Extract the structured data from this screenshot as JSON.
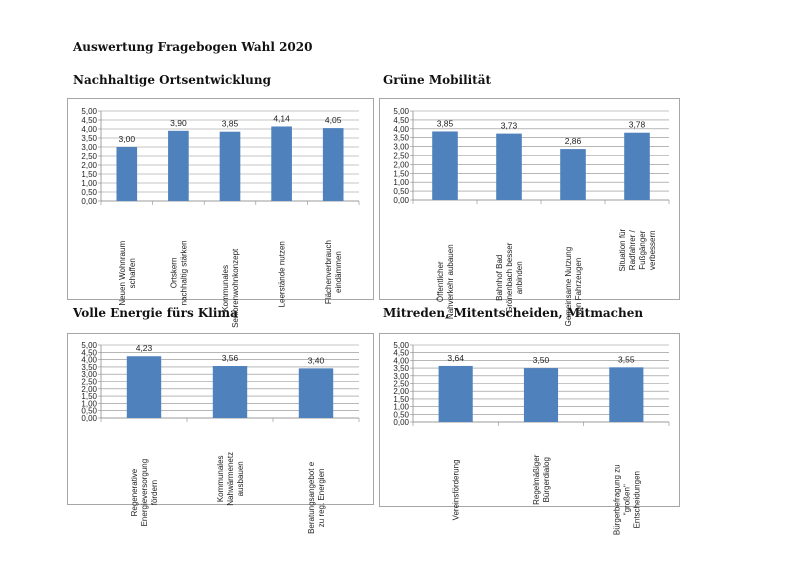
{
  "page_title": "Auswertung Fragebogen Wahl 2020",
  "chart_data": [
    {
      "type": "bar",
      "title": "Nachhaltige Ortsentwicklung",
      "categories": [
        "Neuen Wohnraum schaffen",
        "Ortskern nachhaltig stärken",
        "Kommunales Seniorenwohnkonzept",
        "Leerstände nutzen",
        "Flächenverbrauch eindämmen"
      ],
      "values": [
        3.0,
        3.9,
        3.85,
        4.14,
        4.05
      ],
      "data_labels": [
        "3,00",
        "3,90",
        "3,85",
        "4,14",
        "4,05"
      ],
      "ylim": [
        0,
        5
      ],
      "yticks": [
        "0,00",
        "0,50",
        "1,00",
        "1,50",
        "2,00",
        "2,50",
        "3,00",
        "3,50",
        "4,00",
        "4,50",
        "5,00"
      ],
      "grid": true,
      "color": "#4f81bd"
    },
    {
      "type": "bar",
      "title": "Grüne Mobilität",
      "categories": [
        "Öffentlicher Nahverkehr aubauen",
        "Bahnhof Bad Grönenbach besser anbinden",
        "Gemeinsame Nutzung von Fahrzeugen",
        "Situation für Radfahrer / Fußgänger verbessern"
      ],
      "values": [
        3.85,
        3.73,
        2.86,
        3.78
      ],
      "data_labels": [
        "3,85",
        "3,73",
        "2,86",
        "3,78"
      ],
      "ylim": [
        0,
        5
      ],
      "yticks": [
        "0,00",
        "0,50",
        "1,00",
        "1,50",
        "2,00",
        "2,50",
        "3,00",
        "3,50",
        "4,00",
        "4,50",
        "5,00"
      ],
      "grid": true,
      "color": "#4f81bd"
    },
    {
      "type": "bar",
      "title": "Volle Energie fürs Klima",
      "categories": [
        "Regenerative Energieversorgung fördern",
        "Kommunales Nahwärmenetz ausbauen",
        "Beratungsangebot e zu reg. Energien"
      ],
      "values": [
        4.23,
        3.56,
        3.4
      ],
      "data_labels": [
        "4,23",
        "3,56",
        "3,40"
      ],
      "ylim": [
        0,
        5
      ],
      "yticks": [
        "0,00",
        "0,50",
        "1,00",
        "1,50",
        "2,00",
        "2,50",
        "3,00",
        "3,50",
        "4,00",
        "4,50",
        "5,00"
      ],
      "grid": true,
      "color": "#4f81bd"
    },
    {
      "type": "bar",
      "title": "Mitreden, Mitentscheiden, Mitmachen",
      "categories": [
        "Vereinsförderung",
        "Regelmäßiger Bürgerdialog",
        "Bürgerbefragung zu \"großen\" Entscheidungen"
      ],
      "values": [
        3.64,
        3.5,
        3.55
      ],
      "data_labels": [
        "3,64",
        "3,50",
        "3,55"
      ],
      "ylim": [
        0,
        5
      ],
      "yticks": [
        "0,00",
        "0,50",
        "1,00",
        "1,50",
        "2,00",
        "2,50",
        "3,00",
        "3,50",
        "4,00",
        "4,50",
        "5,00"
      ],
      "grid": true,
      "color": "#4f81bd"
    }
  ]
}
